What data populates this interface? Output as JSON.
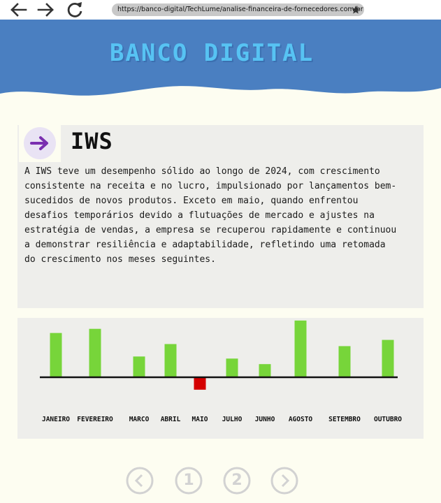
{
  "browser": {
    "url": "https://banco-digital/TechLume/analise-financeira-de-fornecedores.com.br"
  },
  "header": {
    "brand": "BANCO DIGITAL",
    "background_color": "#4a7fc1",
    "brand_color": "#57c3f3"
  },
  "article": {
    "icon": "arrow-right-icon",
    "title": "IWS",
    "body": "A IWS teve um desempenho sólido ao longo de 2024, com crescimento consistente na receita e no lucro, impulsionado por lançamentos bem-sucedidos de novos produtos. Exceto em maio, quando enfrentou desafios temporários devido a flutuações de mercado e ajustes na estratégia de vendas, a empresa se recuperou rapidamente e continuou a demonstrar resiliência e adaptabilidade, refletindo uma retomada do crescimento nos meses seguintes."
  },
  "chart_data": {
    "type": "bar",
    "categories": [
      "JANEIRO",
      "FEVEREIRO",
      "MARCO",
      "ABRIL",
      "MAIO",
      "JULHO",
      "JUNHO",
      "AGOSTO",
      "SETEMBRO",
      "OUTUBRO"
    ],
    "values": [
      64,
      70,
      30,
      48,
      -18,
      27,
      19,
      82,
      45,
      54
    ],
    "positive_color": "#77d53a",
    "negative_color": "#d40000",
    "grid": false
  },
  "pagination": {
    "prev_icon": "chevron-left-icon",
    "pages": [
      "1",
      "2"
    ],
    "next_icon": "chevron-right-icon"
  }
}
